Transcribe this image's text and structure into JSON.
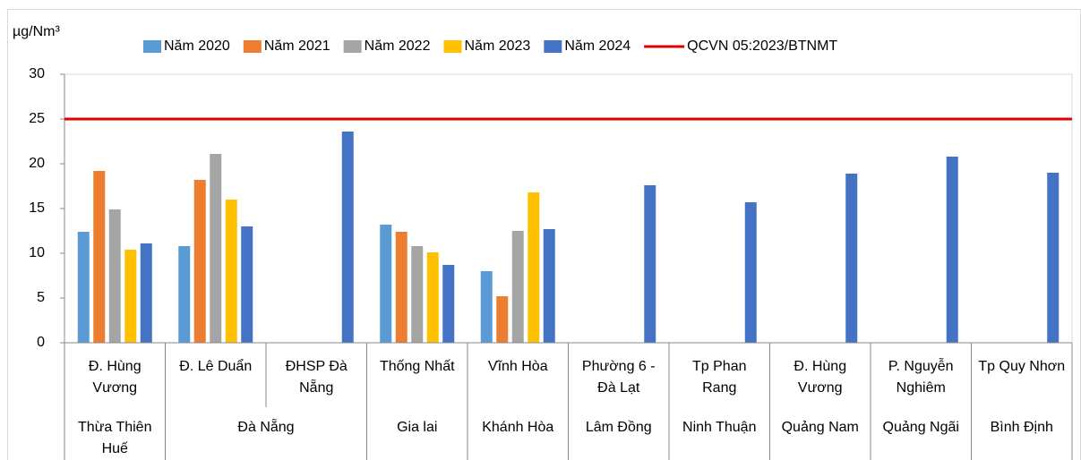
{
  "chart_data": {
    "type": "bar",
    "y_label": "µg/Nm³",
    "categories": [
      "Đ. Hùng Vương",
      "Đ. Lê Duẩn",
      "ĐHSP Đà Nẵng",
      "Thống Nhất",
      "Vĩnh Hòa",
      "Phường 6 - Đà Lạt",
      "Tp Phan Rang",
      "Đ. Hùng Vương",
      "P. Nguyễn Nghiêm",
      "Tp Quy Nhơn"
    ],
    "groups": [
      {
        "name": "Thừa Thiên Huế",
        "span": 1
      },
      {
        "name": "Đà Nẵng",
        "span": 2
      },
      {
        "name": "Gia lai",
        "span": 1
      },
      {
        "name": "Khánh Hòa",
        "span": 1
      },
      {
        "name": "Lâm Đồng",
        "span": 1
      },
      {
        "name": "Ninh Thuận",
        "span": 1
      },
      {
        "name": "Quảng Nam",
        "span": 1
      },
      {
        "name": "Quảng Ngãi",
        "span": 1
      },
      {
        "name": "Bình Định",
        "span": 1
      }
    ],
    "series": [
      {
        "name": "Năm 2020",
        "color": "#5b9bd5",
        "values": [
          12.4,
          10.8,
          null,
          13.2,
          8.0,
          null,
          null,
          null,
          null,
          null
        ]
      },
      {
        "name": "Năm 2021",
        "color": "#ed7d31",
        "values": [
          19.2,
          18.2,
          null,
          12.4,
          5.2,
          null,
          null,
          null,
          null,
          null
        ]
      },
      {
        "name": "Năm 2022",
        "color": "#a5a5a5",
        "values": [
          14.9,
          21.1,
          null,
          10.8,
          12.5,
          null,
          null,
          null,
          null,
          null
        ]
      },
      {
        "name": "Năm 2023",
        "color": "#ffc000",
        "values": [
          10.4,
          16.0,
          null,
          10.1,
          16.8,
          null,
          null,
          null,
          null,
          null
        ]
      },
      {
        "name": "Năm 2024",
        "color": "#4472c4",
        "values": [
          11.1,
          13.0,
          23.6,
          8.7,
          12.7,
          17.6,
          15.7,
          18.9,
          20.8,
          19.0
        ]
      }
    ],
    "reference": {
      "name": "QCVN 05:2023/BTNMT",
      "color": "#e00000",
      "value": 25
    },
    "ylim": [
      0,
      30
    ],
    "yticks": [
      0,
      5,
      10,
      15,
      20,
      25,
      30
    ],
    "grid": false
  }
}
